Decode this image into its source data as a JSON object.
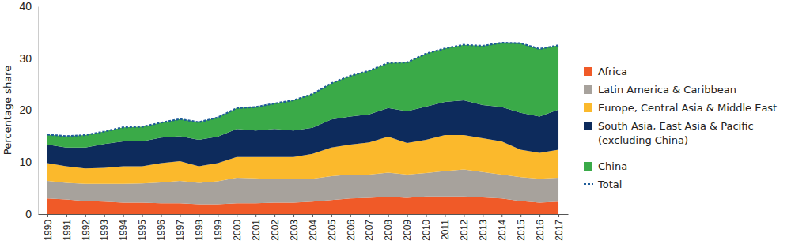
{
  "chart_data": {
    "type": "area",
    "stacked": true,
    "grid": false,
    "legend": "right",
    "y_label": "Percentage share",
    "categories": [
      "1990",
      "1991",
      "1992",
      "1993",
      "1994",
      "1995",
      "1996",
      "1997",
      "1998",
      "1999",
      "2000",
      "2001",
      "2002",
      "2003",
      "2004",
      "2005",
      "2006",
      "2007",
      "2008",
      "2009",
      "2010",
      "2011",
      "2012",
      "2013",
      "2014",
      "2015",
      "2016",
      "2017"
    ],
    "ylim": [
      0,
      40
    ],
    "yticks": [
      0,
      10,
      20,
      30,
      40
    ],
    "series": [
      {
        "name": "Africa",
        "color": "#f05a28",
        "values": [
          3.0,
          2.8,
          2.5,
          2.4,
          2.2,
          2.2,
          2.1,
          2.1,
          1.9,
          1.9,
          2.1,
          2.1,
          2.2,
          2.2,
          2.4,
          2.7,
          3.0,
          3.1,
          3.3,
          3.1,
          3.4,
          3.4,
          3.4,
          3.2,
          3.0,
          2.5,
          2.2,
          2.4
        ]
      },
      {
        "name": "Latin America & Caribbean",
        "color": "#a7a29c",
        "values": [
          3.4,
          3.2,
          3.3,
          3.4,
          3.6,
          3.7,
          4.0,
          4.3,
          4.1,
          4.4,
          4.9,
          4.8,
          4.5,
          4.5,
          4.4,
          4.6,
          4.6,
          4.5,
          4.7,
          4.5,
          4.5,
          4.9,
          5.2,
          4.9,
          4.6,
          4.6,
          4.6,
          4.6
        ]
      },
      {
        "name": "Europe, Central Asia & Middle East",
        "color": "#fbb92c",
        "values": [
          3.4,
          3.2,
          3.0,
          3.1,
          3.4,
          3.3,
          3.7,
          3.8,
          3.2,
          3.5,
          4.0,
          4.1,
          4.3,
          4.3,
          4.8,
          5.5,
          5.8,
          6.2,
          6.9,
          6.1,
          6.4,
          6.9,
          6.6,
          6.5,
          6.4,
          5.3,
          5.0,
          5.4
        ]
      },
      {
        "name": "South Asia, East Asia & Pacific\n(excluding China)",
        "color": "#0d2b5c",
        "values": [
          3.6,
          3.6,
          4.0,
          4.6,
          4.8,
          4.8,
          4.9,
          4.8,
          5.1,
          5.1,
          5.4,
          5.1,
          5.4,
          5.1,
          5.0,
          5.4,
          5.4,
          5.4,
          5.5,
          6.1,
          6.4,
          6.4,
          6.7,
          6.4,
          6.6,
          7.1,
          7.0,
          7.7
        ]
      },
      {
        "name": "China",
        "color": "#3aaa48",
        "values": [
          1.9,
          2.2,
          2.4,
          2.4,
          2.7,
          2.8,
          2.9,
          3.3,
          3.4,
          3.7,
          4.0,
          4.5,
          4.9,
          5.8,
          6.5,
          7.0,
          7.8,
          8.4,
          8.7,
          9.4,
          10.2,
          10.3,
          10.7,
          11.4,
          12.4,
          13.4,
          13.0,
          12.4
        ]
      },
      {
        "name": "Total",
        "type": "line",
        "line_style": "dotted",
        "color": "#1f5c99",
        "values": [
          15.3,
          15.0,
          15.2,
          15.9,
          16.7,
          16.8,
          17.6,
          18.3,
          17.7,
          18.6,
          20.4,
          20.6,
          21.3,
          21.9,
          23.1,
          25.2,
          26.6,
          27.6,
          29.1,
          29.2,
          30.9,
          31.9,
          32.6,
          32.4,
          33.0,
          32.9,
          31.8,
          32.5
        ]
      }
    ]
  }
}
